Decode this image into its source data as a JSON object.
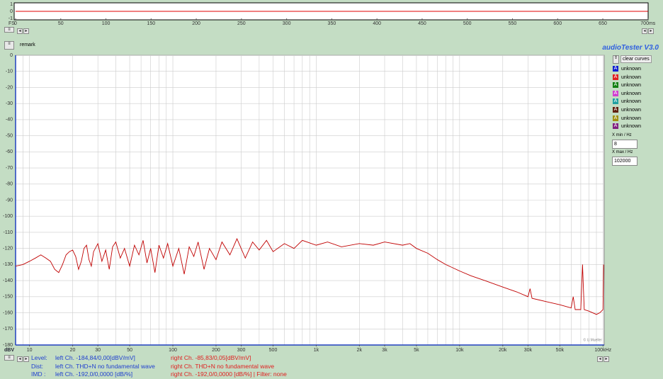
{
  "header": {
    "remark": "remark",
    "app": "audioTester  V3.0"
  },
  "waveform_chart": {
    "type": "line",
    "y_label": "FS",
    "xlim": [
      0,
      700
    ],
    "xticks": [
      0,
      50,
      100,
      150,
      200,
      250,
      300,
      350,
      400,
      450,
      500,
      550,
      600,
      650,
      {
        "value": 700,
        "label": "700ms"
      }
    ],
    "ylim": [
      -1,
      1
    ],
    "yticks": [
      1,
      0,
      -1
    ],
    "series": [
      {
        "color": "#e00000",
        "x": [
          0,
          700
        ],
        "values": [
          0,
          0
        ]
      }
    ]
  },
  "chart_data": {
    "type": "line",
    "y_label": "dBV",
    "xlog": true,
    "xlim": [
      8,
      102000
    ],
    "ylim": [
      -180,
      0
    ],
    "yticks": [
      0,
      -10,
      -20,
      -30,
      -40,
      -50,
      -60,
      -70,
      -80,
      -90,
      -100,
      -110,
      -120,
      -130,
      -140,
      -150,
      -160,
      -170,
      -180
    ],
    "xticks": [
      10,
      20,
      30,
      50,
      100,
      200,
      300,
      500,
      {
        "value": 1000,
        "label": "1k"
      },
      {
        "value": 2000,
        "label": "2k"
      },
      {
        "value": 3000,
        "label": "3k"
      },
      {
        "value": 5000,
        "label": "5k"
      },
      {
        "value": 10000,
        "label": "10k"
      },
      {
        "value": 20000,
        "label": "20k"
      },
      {
        "value": 30000,
        "label": "30k"
      },
      {
        "value": 50000,
        "label": "50k"
      },
      {
        "value": 100000,
        "label": "100kHz"
      }
    ],
    "xgrid": [
      9,
      10,
      20,
      30,
      40,
      50,
      60,
      70,
      80,
      90,
      100,
      200,
      300,
      400,
      500,
      600,
      700,
      800,
      900,
      1000,
      2000,
      3000,
      4000,
      5000,
      6000,
      7000,
      8000,
      9000,
      10000,
      20000,
      30000,
      40000,
      50000,
      60000,
      70000,
      80000,
      90000,
      100000
    ],
    "grid": true,
    "credit": "© U.Mueller",
    "series": [
      {
        "color": "#c00000",
        "x": [
          8,
          9,
          10,
          11,
          12,
          13,
          14,
          15,
          16,
          17,
          18,
          19,
          20,
          21,
          22,
          23,
          24,
          25,
          26,
          27,
          28,
          30,
          32,
          34,
          36,
          38,
          40,
          43,
          46,
          50,
          54,
          58,
          62,
          66,
          70,
          75,
          80,
          86,
          92,
          100,
          110,
          120,
          130,
          140,
          150,
          165,
          180,
          200,
          220,
          250,
          280,
          320,
          360,
          400,
          450,
          500,
          600,
          700,
          800,
          1000,
          1200,
          1500,
          2000,
          2500,
          3000,
          4000,
          4500,
          5000,
          6000,
          7000,
          8000,
          10000,
          12000,
          15000,
          20000,
          25000,
          30000,
          31000,
          32000,
          40000,
          50000,
          60000,
          62000,
          64000,
          70000,
          72000,
          74000,
          80000,
          90000,
          95000,
          100000,
          101000
        ],
        "values": [
          -131,
          -130,
          -128,
          -126,
          -124,
          -126,
          -128,
          -133,
          -135,
          -130,
          -124,
          -122,
          -121,
          -125,
          -133,
          -128,
          -120,
          -118,
          -127,
          -131,
          -122,
          -117,
          -128,
          -121,
          -133,
          -119,
          -116,
          -126,
          -120,
          -131,
          -118,
          -124,
          -115,
          -129,
          -120,
          -135,
          -118,
          -126,
          -117,
          -131,
          -120,
          -136,
          -119,
          -125,
          -116,
          -133,
          -120,
          -127,
          -116,
          -124,
          -114,
          -126,
          -116,
          -121,
          -115,
          -122,
          -117,
          -120,
          -115,
          -118,
          -116,
          -119,
          -117,
          -118,
          -116,
          -118,
          -117,
          -120,
          -123,
          -127,
          -130,
          -134,
          -137,
          -140,
          -144,
          -147,
          -150,
          -145,
          -151,
          -153,
          -155,
          -157,
          -150,
          -158,
          -158,
          -130,
          -158,
          -159,
          -161,
          -160,
          -158,
          -130
        ]
      }
    ]
  },
  "sidebar": {
    "button": "clear curves",
    "curves": [
      {
        "symbol": "A",
        "label": "unknown",
        "color": "#1020d0"
      },
      {
        "symbol": "A",
        "label": "unknown",
        "color": "#e02020"
      },
      {
        "symbol": "A",
        "label": "unknown",
        "color": "#108010"
      },
      {
        "symbol": "A",
        "label": "unknown",
        "color": "#d040d0"
      },
      {
        "symbol": "A",
        "label": "unknown",
        "color": "#20a0a0"
      },
      {
        "symbol": "A",
        "label": "unknown",
        "color": "#602010"
      },
      {
        "symbol": "A",
        "label": "unknown",
        "color": "#a09010"
      },
      {
        "symbol": "A",
        "label": "unknown",
        "color": "#802080"
      }
    ],
    "xmin_label": "X min / Hz",
    "xmin": 8,
    "xmax_label": "X max / Hz",
    "xmax": 102000
  },
  "status": [
    {
      "label": "Level:",
      "left": "left Ch. -184,84/0,00[dBV/mV]",
      "right": "right Ch. -85,83/0,05[dBV/mV]"
    },
    {
      "label": "Dist:",
      "left": "left Ch. THD+N  no fundamental wave",
      "right": "right Ch. THD+N  no fundamental wave"
    },
    {
      "label": "IMD :",
      "left": "left Ch. -192,0/0,0000 [dB/%]",
      "right": "right Ch. -192,0/0,0000 [dB/%] |   Filter: none"
    }
  ]
}
